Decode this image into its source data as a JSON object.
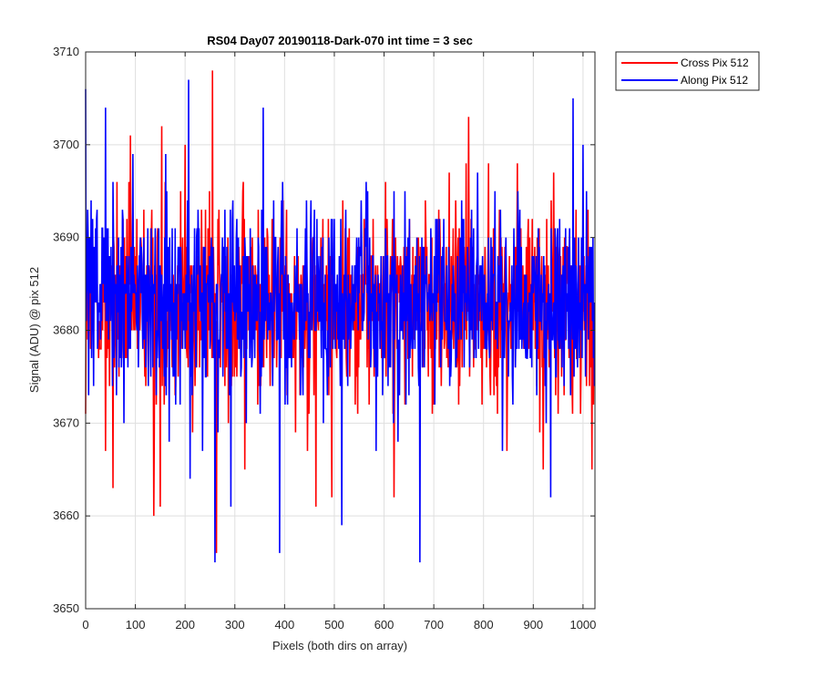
{
  "chart_data": {
    "type": "line",
    "title": "RS04 Day07 20190118-Dark-070 int time = 3 sec",
    "xlabel": "Pixels (both dirs on array)",
    "ylabel": "Signal (ADU) @ pix 512",
    "xlim": [
      0,
      1024
    ],
    "ylim": [
      3650,
      3710
    ],
    "xticks": [
      0,
      100,
      200,
      300,
      400,
      500,
      600,
      700,
      800,
      900,
      1000
    ],
    "yticks": [
      3650,
      3660,
      3670,
      3680,
      3690,
      3700,
      3710
    ],
    "grid": true,
    "legend_position": "outside-top-right",
    "n_points": 1024,
    "series": [
      {
        "name": "Cross Pix 512",
        "color": "#ff0000",
        "mean": 3683,
        "max": 3708,
        "max_at": 255,
        "min": 3656,
        "min_at": 263,
        "notable_points": [
          {
            "x": 0,
            "y": 3671
          },
          {
            "x": 10,
            "y": 3678
          },
          {
            "x": 28,
            "y": 3678
          },
          {
            "x": 40,
            "y": 3667
          },
          {
            "x": 55,
            "y": 3663
          },
          {
            "x": 63,
            "y": 3696
          },
          {
            "x": 90,
            "y": 3701
          },
          {
            "x": 137,
            "y": 3660
          },
          {
            "x": 150,
            "y": 3661
          },
          {
            "x": 153,
            "y": 3702
          },
          {
            "x": 160,
            "y": 3696
          },
          {
            "x": 200,
            "y": 3700
          },
          {
            "x": 215,
            "y": 3669
          },
          {
            "x": 255,
            "y": 3708
          },
          {
            "x": 263,
            "y": 3656
          },
          {
            "x": 320,
            "y": 3665
          },
          {
            "x": 463,
            "y": 3661
          },
          {
            "x": 495,
            "y": 3662
          },
          {
            "x": 620,
            "y": 3662
          },
          {
            "x": 765,
            "y": 3698
          },
          {
            "x": 770,
            "y": 3703
          },
          {
            "x": 868,
            "y": 3698
          },
          {
            "x": 920,
            "y": 3665
          },
          {
            "x": 1010,
            "y": 3693
          },
          {
            "x": 1018,
            "y": 3665
          }
        ]
      },
      {
        "name": "Along Pix 512",
        "color": "#0000ff",
        "mean": 3683,
        "max": 3707,
        "max_at": 207,
        "min": 3655,
        "min_at": 260,
        "notable_points": [
          {
            "x": 0,
            "y": 3706
          },
          {
            "x": 40,
            "y": 3704
          },
          {
            "x": 95,
            "y": 3699
          },
          {
            "x": 168,
            "y": 3668
          },
          {
            "x": 207,
            "y": 3707
          },
          {
            "x": 210,
            "y": 3664
          },
          {
            "x": 260,
            "y": 3655
          },
          {
            "x": 292,
            "y": 3661
          },
          {
            "x": 357,
            "y": 3704
          },
          {
            "x": 390,
            "y": 3656
          },
          {
            "x": 515,
            "y": 3659
          },
          {
            "x": 672,
            "y": 3655
          },
          {
            "x": 935,
            "y": 3662
          },
          {
            "x": 980,
            "y": 3705
          },
          {
            "x": 1000,
            "y": 3700
          },
          {
            "x": 1020,
            "y": 3690
          }
        ]
      }
    ]
  }
}
